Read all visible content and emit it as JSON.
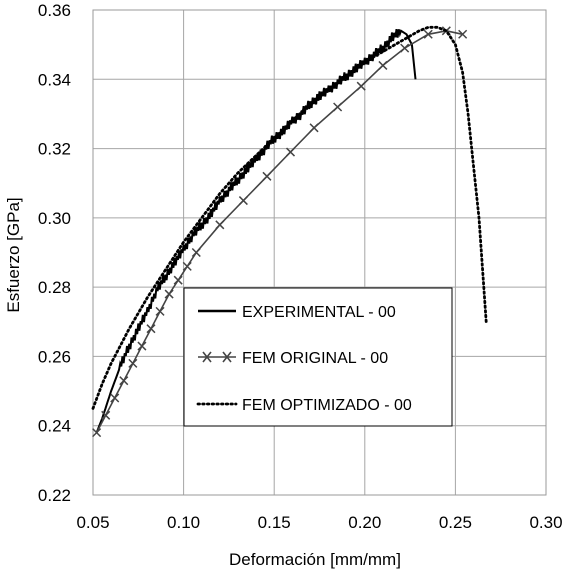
{
  "chart_data": {
    "type": "line",
    "title": "",
    "xlabel": "Deformación [mm/mm]",
    "ylabel": "Esfuerzo [GPa]",
    "xlim": [
      0.05,
      0.3
    ],
    "ylim": [
      0.22,
      0.36
    ],
    "xticks": [
      "0.05",
      "0.10",
      "0.15",
      "0.20",
      "0.25",
      "0.30"
    ],
    "yticks": [
      "0.22",
      "0.24",
      "0.26",
      "0.28",
      "0.30",
      "0.32",
      "0.34",
      "0.36"
    ],
    "grid": true,
    "legend_position": "lower-center",
    "series": [
      {
        "name": "EXPERIMENTAL - 00",
        "style": "solid",
        "x": [
          0.052,
          0.055,
          0.06,
          0.065,
          0.07,
          0.075,
          0.08,
          0.085,
          0.09,
          0.095,
          0.1,
          0.105,
          0.11,
          0.115,
          0.12,
          0.125,
          0.13,
          0.135,
          0.14,
          0.145,
          0.15,
          0.155,
          0.16,
          0.165,
          0.17,
          0.175,
          0.18,
          0.185,
          0.19,
          0.195,
          0.2,
          0.205,
          0.21,
          0.215,
          0.22,
          0.223,
          0.226,
          0.228
        ],
        "y": [
          0.238,
          0.242,
          0.25,
          0.257,
          0.263,
          0.268,
          0.273,
          0.279,
          0.283,
          0.287,
          0.291,
          0.295,
          0.298,
          0.301,
          0.305,
          0.308,
          0.311,
          0.314,
          0.317,
          0.32,
          0.323,
          0.325,
          0.328,
          0.33,
          0.333,
          0.335,
          0.337,
          0.339,
          0.341,
          0.343,
          0.345,
          0.347,
          0.349,
          0.352,
          0.354,
          0.353,
          0.35,
          0.34
        ]
      },
      {
        "name": "FEM ORIGINAL - 00",
        "style": "solid-x-marker",
        "x": [
          0.052,
          0.057,
          0.062,
          0.067,
          0.072,
          0.077,
          0.082,
          0.087,
          0.092,
          0.097,
          0.102,
          0.107,
          0.12,
          0.133,
          0.146,
          0.159,
          0.172,
          0.185,
          0.198,
          0.21,
          0.222,
          0.235,
          0.245,
          0.254
        ],
        "y": [
          0.238,
          0.243,
          0.248,
          0.253,
          0.258,
          0.263,
          0.268,
          0.273,
          0.278,
          0.282,
          0.286,
          0.29,
          0.298,
          0.305,
          0.312,
          0.319,
          0.326,
          0.332,
          0.338,
          0.344,
          0.349,
          0.353,
          0.354,
          0.353
        ]
      },
      {
        "name": "FEM OPTIMIZADO - 00",
        "style": "dotted",
        "x": [
          0.05,
          0.055,
          0.06,
          0.065,
          0.07,
          0.08,
          0.09,
          0.1,
          0.11,
          0.12,
          0.13,
          0.14,
          0.15,
          0.16,
          0.17,
          0.18,
          0.19,
          0.2,
          0.21,
          0.22,
          0.23,
          0.235,
          0.24,
          0.245,
          0.25,
          0.254,
          0.257,
          0.26,
          0.263,
          0.265,
          0.267
        ],
        "y": [
          0.245,
          0.252,
          0.258,
          0.263,
          0.268,
          0.277,
          0.285,
          0.293,
          0.3,
          0.307,
          0.313,
          0.318,
          0.323,
          0.328,
          0.333,
          0.337,
          0.341,
          0.345,
          0.348,
          0.351,
          0.354,
          0.355,
          0.355,
          0.354,
          0.35,
          0.342,
          0.33,
          0.315,
          0.3,
          0.285,
          0.27
        ]
      }
    ]
  }
}
